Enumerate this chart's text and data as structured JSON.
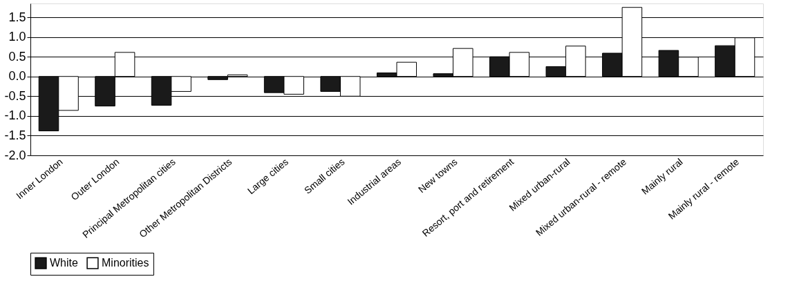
{
  "chart_data": {
    "type": "bar",
    "categories": [
      "Inner London",
      "Outer London",
      "Principal Metropolitan cities",
      "Other Metropolitan Districts",
      "Large cities",
      "Small cities",
      "Industrial areas",
      "New towns",
      "Resort, port and retirement",
      "Mixed urban-rural",
      "Mixed urban-rural - remote",
      "Mainly rural",
      "Mainly rural - remote"
    ],
    "series": [
      {
        "name": "White",
        "color": "#1a1a1a",
        "values": [
          -1.38,
          -0.75,
          -0.73,
          -0.08,
          -0.41,
          -0.38,
          0.09,
          0.07,
          0.5,
          0.25,
          0.59,
          0.66,
          0.78
        ]
      },
      {
        "name": "Minorities",
        "color": "#ffffff",
        "values": [
          -0.86,
          0.61,
          -0.38,
          0.04,
          -0.45,
          -0.5,
          0.36,
          0.71,
          0.61,
          0.77,
          1.75,
          0.49,
          0.98
        ]
      }
    ],
    "ylim": [
      -2.0,
      1.85
    ],
    "yticks": [
      {
        "value": -2.0,
        "label": "-2.0"
      },
      {
        "value": -1.5,
        "label": "-1.5"
      },
      {
        "value": -1.0,
        "label": "-1.0"
      },
      {
        "value": -0.5,
        "label": "-0.5"
      },
      {
        "value": 0.0,
        "label": "0.0"
      },
      {
        "value": 0.5,
        "label": "0.5"
      },
      {
        "value": 1.0,
        "label": "1.0"
      },
      {
        "value": 1.5,
        "label": "1.5"
      }
    ],
    "grid": "y",
    "legend": "bottom"
  }
}
